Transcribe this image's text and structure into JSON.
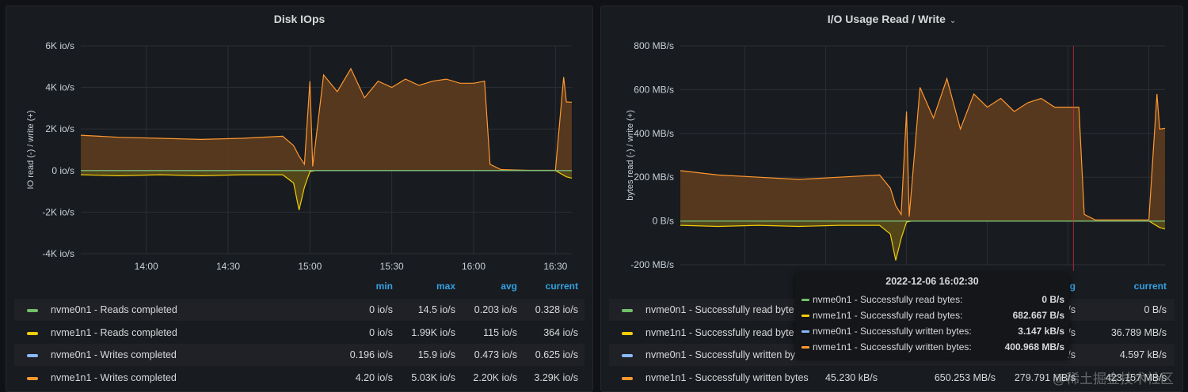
{
  "colors": {
    "green": "#73bf69",
    "yellow": "#f2cc0c",
    "cyan": "#8ab8ff",
    "orange": "#ff9830",
    "orange_fill": "#5c3c1e",
    "yellow_fill": "#5a4c18",
    "legend_header": "#33a2e5"
  },
  "left_panel": {
    "title": "Disk IOps",
    "y_axis_label": "IO read (-) / write (+)",
    "legend_headers": [
      "min",
      "max",
      "avg",
      "current"
    ],
    "legend_rows": [
      {
        "color": "#73bf69",
        "name": "nvme0n1 - Reads completed",
        "min": "0 io/s",
        "max": "14.5 io/s",
        "avg": "0.203 io/s",
        "current": "0.328 io/s"
      },
      {
        "color": "#f2cc0c",
        "name": "nvme1n1 - Reads completed",
        "min": "0 io/s",
        "max": "1.99K io/s",
        "avg": "115 io/s",
        "current": "364 io/s"
      },
      {
        "color": "#8ab8ff",
        "name": "nvme0n1 - Writes completed",
        "min": "0.196 io/s",
        "max": "15.9 io/s",
        "avg": "0.473 io/s",
        "current": "0.625 io/s"
      },
      {
        "color": "#ff9830",
        "name": "nvme1n1 - Writes completed",
        "min": "4.20 io/s",
        "max": "5.03K io/s",
        "avg": "2.20K io/s",
        "current": "3.29K io/s"
      }
    ]
  },
  "right_panel": {
    "title": "I/O Usage Read / Write",
    "y_axis_label": "bytes read (-) / write (+)",
    "legend_headers": [
      "g",
      "current"
    ],
    "legend_rows": [
      {
        "color": "#73bf69",
        "name": "nvme0n1 - Successfully read byte",
        "min": "",
        "max": "",
        "avg": "3/s",
        "current": "0 B/s"
      },
      {
        "color": "#f2cc0c",
        "name": "nvme1n1 - Successfully read byte",
        "min": "",
        "max": "",
        "avg": "3/s",
        "current": "36.789 MB/s"
      },
      {
        "color": "#8ab8ff",
        "name": "nvme0n1 - Successfully written by",
        "min": "",
        "max": "",
        "avg": "3/s",
        "current": "4.597 kB/s"
      },
      {
        "color": "#ff9830",
        "name": "nvme1n1 - Successfully written bytes",
        "min": "45.230 kB/s",
        "max": "650.253 MB/s",
        "avg": "279.791 MB/s",
        "current": "423.157 MB/s"
      }
    ],
    "tooltip": {
      "title": "2022-12-06 16:02:30",
      "rows": [
        {
          "color": "#73bf69",
          "name": "nvme0n1 - Successfully read bytes:",
          "value": "0 B/s"
        },
        {
          "color": "#f2cc0c",
          "name": "nvme1n1 - Successfully read bytes:",
          "value": "682.667 B/s"
        },
        {
          "color": "#8ab8ff",
          "name": "nvme0n1 - Successfully written bytes:",
          "value": "3.147 kB/s"
        },
        {
          "color": "#ff9830",
          "name": "nvme1n1 - Successfully written bytes:",
          "value": "400.968 MB/s"
        }
      ]
    }
  },
  "watermark": "@稀土掘金技术社区",
  "chart_data": [
    {
      "type": "area",
      "title": "Disk IOps",
      "ylabel": "IO read (-) / write (+)",
      "x_ticks": [
        "14:00",
        "14:30",
        "15:00",
        "15:30",
        "16:00",
        "16:30"
      ],
      "x_range": [
        "13:36",
        "16:36"
      ],
      "y_ticks": [
        "6K io/s",
        "4K io/s",
        "2K io/s",
        "0 io/s",
        "-2K io/s",
        "-4K io/s"
      ],
      "ylim": [
        -4000,
        6000
      ],
      "grid": true,
      "series": [
        {
          "name": "nvme1n1 - Writes completed",
          "x": [
            "13:36",
            "13:50",
            "14:05",
            "14:20",
            "14:35",
            "14:50",
            "14:54",
            "14:56",
            "14:58",
            "15:00",
            "15:01",
            "15:05",
            "15:10",
            "15:15",
            "15:20",
            "15:25",
            "15:30",
            "15:35",
            "15:40",
            "15:45",
            "15:50",
            "15:55",
            "16:00",
            "16:04",
            "16:06",
            "16:10",
            "16:20",
            "16:30",
            "16:33",
            "16:34",
            "16:36"
          ],
          "values": [
            1700,
            1600,
            1550,
            1500,
            1550,
            1650,
            1200,
            700,
            300,
            4300,
            200,
            4600,
            3800,
            4900,
            3500,
            4300,
            4000,
            4400,
            4100,
            4300,
            4400,
            4200,
            4200,
            4300,
            300,
            50,
            10,
            10,
            4500,
            3300,
            3290
          ]
        },
        {
          "name": "nvme1n1 - Reads completed",
          "x": [
            "13:36",
            "13:50",
            "14:05",
            "14:20",
            "14:35",
            "14:50",
            "14:54",
            "14:56",
            "14:58",
            "15:00",
            "15:02",
            "15:10",
            "15:30",
            "16:00",
            "16:04",
            "16:10",
            "16:30",
            "16:34",
            "16:36"
          ],
          "values": [
            -200,
            -250,
            -200,
            -250,
            -200,
            -200,
            -600,
            -1900,
            -800,
            -50,
            0,
            0,
            0,
            0,
            0,
            0,
            0,
            -300,
            -364
          ]
        },
        {
          "name": "nvme0n1 - Writes completed",
          "x": [
            "13:36",
            "16:36"
          ],
          "values": [
            1,
            1
          ]
        },
        {
          "name": "nvme0n1 - Reads completed",
          "x": [
            "13:36",
            "16:36"
          ],
          "values": [
            0,
            0
          ]
        }
      ]
    },
    {
      "type": "area",
      "title": "I/O Usage Read / Write",
      "ylabel": "bytes read (-) / write (+)",
      "x_range": [
        "13:36",
        "16:36"
      ],
      "y_ticks": [
        "800 MB/s",
        "600 MB/s",
        "400 MB/s",
        "200 MB/s",
        "0 B/s",
        "-200 MB/s"
      ],
      "ylim": [
        -200,
        800
      ],
      "grid": true,
      "series": [
        {
          "name": "nvme1n1 - Successfully written bytes",
          "x": [
            "13:36",
            "13:50",
            "14:05",
            "14:20",
            "14:35",
            "14:50",
            "14:54",
            "14:56",
            "14:58",
            "15:00",
            "15:01",
            "15:05",
            "15:10",
            "15:15",
            "15:20",
            "15:25",
            "15:30",
            "15:35",
            "15:40",
            "15:45",
            "15:50",
            "15:55",
            "16:00",
            "16:04",
            "16:06",
            "16:10",
            "16:20",
            "16:30",
            "16:33",
            "16:34",
            "16:36"
          ],
          "values": [
            230,
            210,
            200,
            190,
            200,
            210,
            150,
            70,
            30,
            500,
            20,
            610,
            470,
            650,
            420,
            580,
            520,
            560,
            500,
            540,
            560,
            520,
            520,
            520,
            30,
            5,
            5,
            5,
            580,
            420,
            423
          ]
        },
        {
          "name": "nvme1n1 - Successfully read bytes",
          "x": [
            "13:36",
            "13:50",
            "14:05",
            "14:20",
            "14:35",
            "14:50",
            "14:54",
            "14:56",
            "14:58",
            "15:00",
            "15:02",
            "15:10",
            "15:30",
            "16:00",
            "16:04",
            "16:10",
            "16:30",
            "16:34",
            "16:36"
          ],
          "values": [
            -20,
            -25,
            -20,
            -25,
            -20,
            -20,
            -60,
            -180,
            -80,
            -5,
            0,
            0,
            0,
            0,
            0,
            0,
            0,
            -30,
            -37
          ]
        },
        {
          "name": "nvme0n1 - Successfully written bytes",
          "x": [
            "13:36",
            "16:36"
          ],
          "values": [
            0.005,
            0.005
          ]
        },
        {
          "name": "nvme0n1 - Successfully read bytes",
          "x": [
            "13:36",
            "16:36"
          ],
          "values": [
            0,
            0
          ]
        }
      ]
    }
  ]
}
